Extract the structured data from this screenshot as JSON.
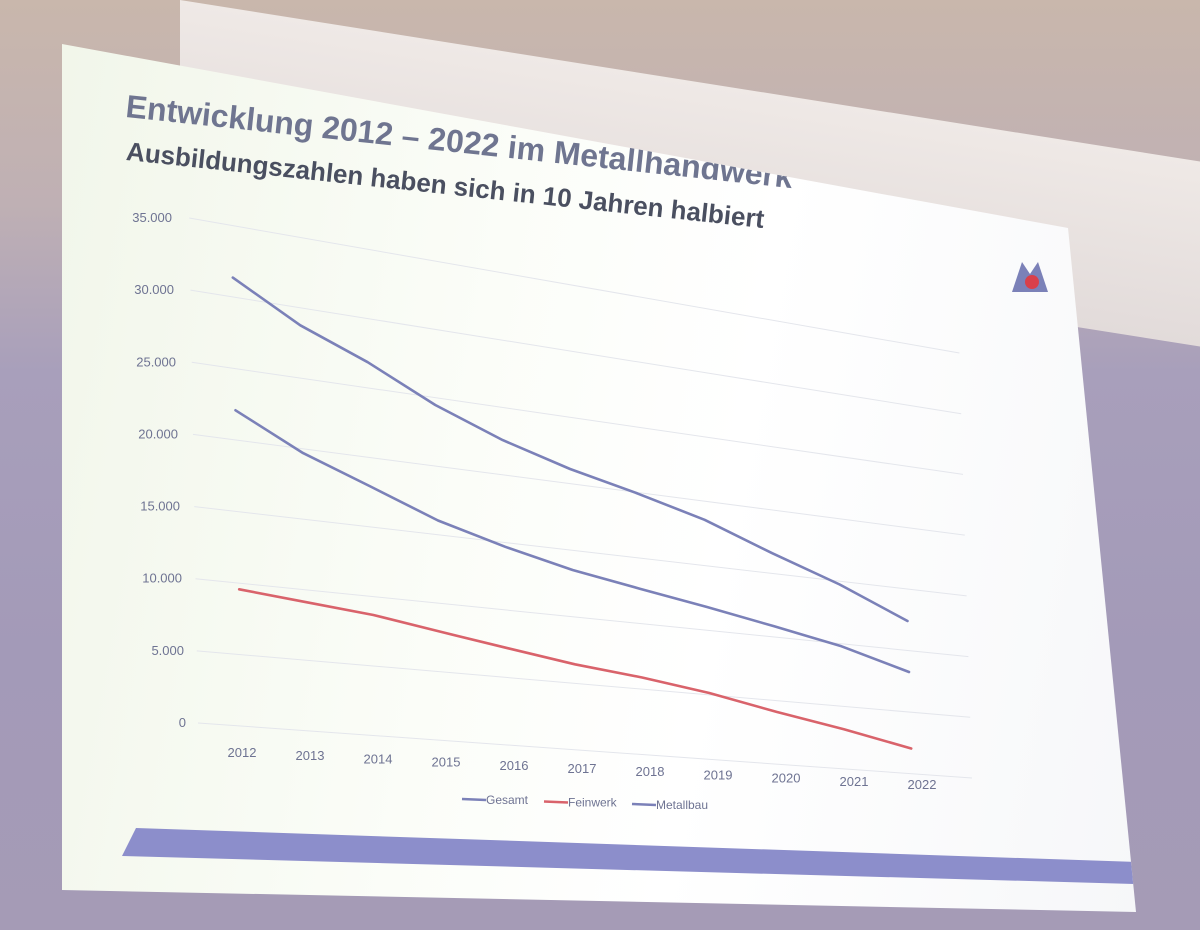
{
  "slide": {
    "title": "Entwicklung 2012 – 2022 im Metallhandwerk",
    "subtitle": "Ausbildungszahlen haben sich in 10 Jahren halbiert"
  },
  "colors": {
    "gesamt": "#7b81b8",
    "feinwerk": "#d9636b",
    "metallbau": "#7b81b8",
    "accent_bar": "#8c8ecb",
    "axis_text": "#6e7392"
  },
  "icons": {
    "logo": "metallhandwerk-logo-icon"
  },
  "chart_data": {
    "type": "line",
    "title": "",
    "xlabel": "",
    "ylabel": "",
    "ylim": [
      0,
      35000
    ],
    "yticks": [
      0,
      5000,
      10000,
      15000,
      20000,
      25000,
      30000,
      35000
    ],
    "ytick_labels": [
      "0",
      "5.000",
      "10.000",
      "15.000",
      "20.000",
      "25.000",
      "30.000",
      "35.000"
    ],
    "categories": [
      "2012",
      "2013",
      "2014",
      "2015",
      "2016",
      "2017",
      "2018",
      "2019",
      "2020",
      "2021",
      "2022"
    ],
    "series": [
      {
        "name": "Gesamt",
        "color": "#7b81b8",
        "values": [
          30800,
          28300,
          26500,
          24200,
          22400,
          21000,
          19900,
          18600,
          16700,
          14900,
          12600
        ]
      },
      {
        "name": "Feinwerk",
        "color": "#d9636b",
        "values": [
          9200,
          8800,
          8400,
          7700,
          7000,
          6300,
          5800,
          5100,
          4100,
          3200,
          2100
        ]
      },
      {
        "name": "Metallbau",
        "color": "#7b81b8",
        "values": [
          21600,
          19300,
          17600,
          15800,
          14500,
          13400,
          12600,
          11800,
          10900,
          9900,
          8400
        ]
      }
    ],
    "grid": true,
    "legend_position": "bottom"
  }
}
